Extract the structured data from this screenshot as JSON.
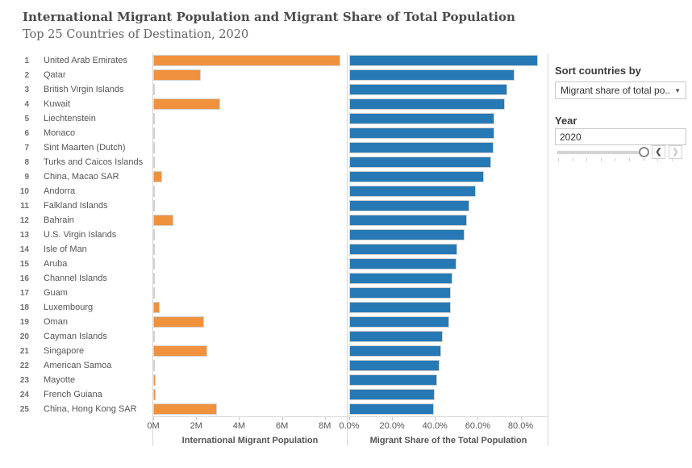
{
  "title": "International Migrant Population and Migrant Share of Total Population",
  "subtitle": "Top 25 Countries of Destination, 2020",
  "chart_data": {
    "type": "bar",
    "orientation": "horizontal",
    "categories": [
      "United Arab Emirates",
      "Qatar",
      "British Virgin Islands",
      "Kuwait",
      "Liechtenstein",
      "Monaco",
      "Sint Maarten (Dutch)",
      "Turks and Caicos Islands",
      "China, Macao SAR",
      "Andorra",
      "Falkland Islands",
      "Bahrain",
      "U.S. Virgin Islands",
      "Isle of Man",
      "Aruba",
      "Channel Islands",
      "Guam",
      "Luxembourg",
      "Oman",
      "Cayman Islands",
      "Singapore",
      "American Samoa",
      "Mayotte",
      "French Guiana",
      "China, Hong Kong SAR"
    ],
    "ranks": [
      1,
      2,
      3,
      4,
      5,
      6,
      7,
      8,
      9,
      10,
      11,
      12,
      13,
      14,
      15,
      16,
      17,
      18,
      19,
      20,
      21,
      22,
      23,
      24,
      25
    ],
    "series": [
      {
        "name": "International Migrant Population",
        "color": "#F0913E",
        "values": [
          8716332,
          2226192,
          22259,
          3110159,
          25896,
          26618,
          28894,
          25623,
          408980,
          45656,
          1955,
          936093,
          56475,
          42861,
          53279,
          83623,
          80290,
          296806,
          2372836,
          28595,
          2523648,
          23359,
          111652,
          119383,
          2962525
        ],
        "axis_ticks": [
          {
            "label": "0M",
            "value": 0
          },
          {
            "label": "2M",
            "value": 2000000
          },
          {
            "label": "4M",
            "value": 4000000
          },
          {
            "label": "6M",
            "value": 6000000
          },
          {
            "label": "8M",
            "value": 8000000
          }
        ],
        "axis_max": 9022000
      },
      {
        "name": "Migrant Share of the Total Population",
        "color": "#2779B5",
        "values": [
          88.1,
          77.3,
          73.6,
          72.8,
          67.9,
          67.8,
          67.4,
          66.2,
          62.9,
          59.1,
          56.2,
          55.0,
          54.0,
          50.4,
          49.9,
          48.1,
          47.6,
          47.4,
          46.5,
          43.5,
          43.1,
          42.3,
          40.9,
          39.9,
          39.6
        ],
        "axis_ticks": [
          {
            "label": "0.0%",
            "value": 0
          },
          {
            "label": "20.0%",
            "value": 20
          },
          {
            "label": "40.0%",
            "value": 40
          },
          {
            "label": "60.0%",
            "value": 60
          },
          {
            "label": "80.0%",
            "value": 80
          }
        ],
        "axis_max": 92.6
      }
    ],
    "grid": false,
    "legend": false
  },
  "sidebar": {
    "sort": {
      "label": "Sort countries by",
      "value": "Migrant share of total po...",
      "caret_icon": "▼"
    },
    "year": {
      "label": "Year",
      "value": "2020"
    },
    "slider": {
      "position": "end",
      "back_icon": "❮",
      "forward_icon": "❯",
      "back_enabled": true,
      "forward_enabled": false
    }
  }
}
